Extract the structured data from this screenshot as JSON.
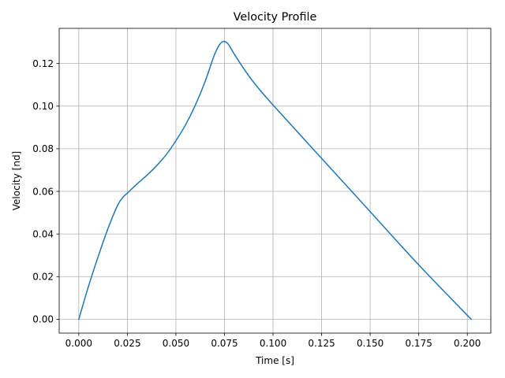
{
  "chart_data": {
    "type": "line",
    "title": "Velocity Profile",
    "xlabel": "Time [s]",
    "ylabel": "Velocity [nd]",
    "xlim": [
      -0.0101,
      0.2121
    ],
    "ylim": [
      -0.0065,
      0.1365
    ],
    "xticks": [
      0.0,
      0.025,
      0.05,
      0.075,
      0.1,
      0.125,
      0.15,
      0.175,
      0.2
    ],
    "xtick_labels": [
      "0.000",
      "0.025",
      "0.050",
      "0.075",
      "0.100",
      "0.125",
      "0.150",
      "0.175",
      "0.200"
    ],
    "yticks": [
      0.0,
      0.02,
      0.04,
      0.06,
      0.08,
      0.1,
      0.12
    ],
    "ytick_labels": [
      "0.00",
      "0.02",
      "0.04",
      "0.06",
      "0.08",
      "0.10",
      "0.12"
    ],
    "grid": true,
    "series": [
      {
        "color": "#1f77b4",
        "x": [
          0.0,
          0.005,
          0.01,
          0.015,
          0.02,
          0.023,
          0.025,
          0.03,
          0.035,
          0.04,
          0.045,
          0.05,
          0.055,
          0.06,
          0.065,
          0.07,
          0.073,
          0.075,
          0.077,
          0.08,
          0.085,
          0.09,
          0.1,
          0.125,
          0.15,
          0.175,
          0.202
        ],
        "y": [
          0.0,
          0.0155,
          0.0295,
          0.0425,
          0.0535,
          0.0575,
          0.0592,
          0.0635,
          0.0675,
          0.072,
          0.0772,
          0.0838,
          0.0913,
          0.1005,
          0.1115,
          0.1245,
          0.1295,
          0.1303,
          0.129,
          0.1245,
          0.1175,
          0.1112,
          0.1005,
          0.0755,
          0.0505,
          0.0255,
          0.0
        ]
      }
    ]
  }
}
